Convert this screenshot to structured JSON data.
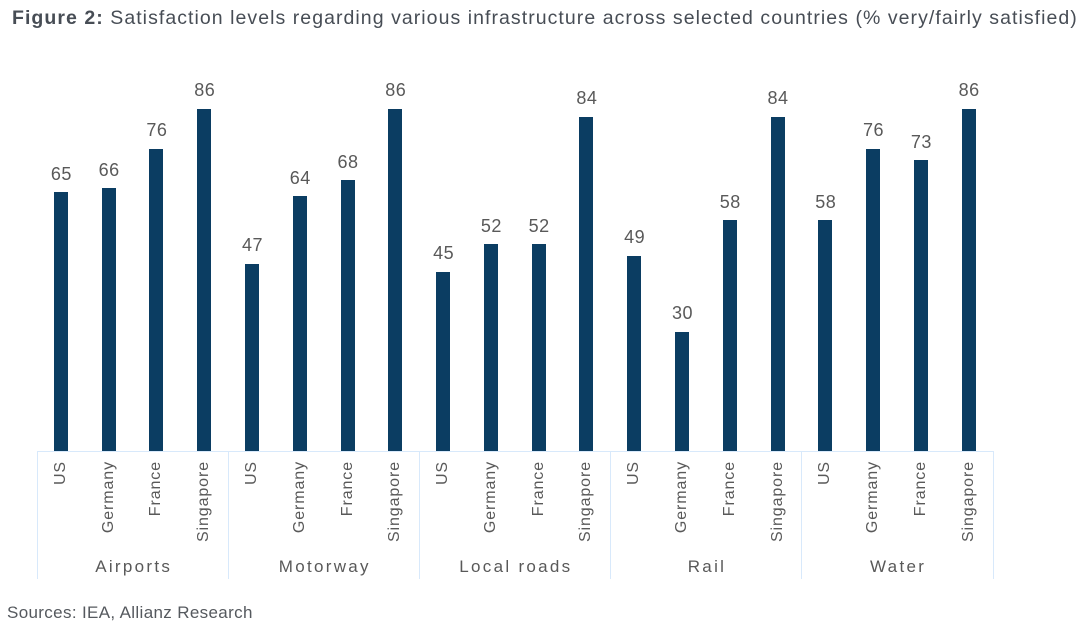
{
  "title": {
    "prefix": "Figure 2:",
    "text": " Satisfaction levels regarding various infrastructure across selected countries (% very/fairly satisfied)"
  },
  "source_note": "Sources: IEA, Allianz Research",
  "colors": {
    "bar": "#0b3d62",
    "axis_line": "#d8e9fb",
    "label_gray": "#595959",
    "title_gray": "#474d55"
  },
  "chart_data": {
    "type": "bar",
    "title": "Figure 2: Satisfaction levels regarding various infrastructure across selected countries (% very/fairly satisfied)",
    "xlabel": "",
    "ylabel": "",
    "ylim": [
      0,
      100
    ],
    "grid": false,
    "legend": "none",
    "value_labels": "above bars",
    "group_labels": [
      "Airports",
      "Motorway",
      "Local roads",
      "Rail",
      "Water"
    ],
    "bar_labels": [
      "US",
      "Germany",
      "France",
      "Singapore"
    ],
    "series": [
      {
        "name": "Airports",
        "values": [
          65,
          66,
          76,
          86
        ]
      },
      {
        "name": "Motorway",
        "values": [
          47,
          64,
          68,
          86
        ]
      },
      {
        "name": "Local roads",
        "values": [
          45,
          52,
          52,
          84
        ]
      },
      {
        "name": "Rail",
        "values": [
          49,
          30,
          58,
          84
        ]
      },
      {
        "name": "Water",
        "values": [
          58,
          76,
          73,
          86
        ]
      }
    ]
  }
}
